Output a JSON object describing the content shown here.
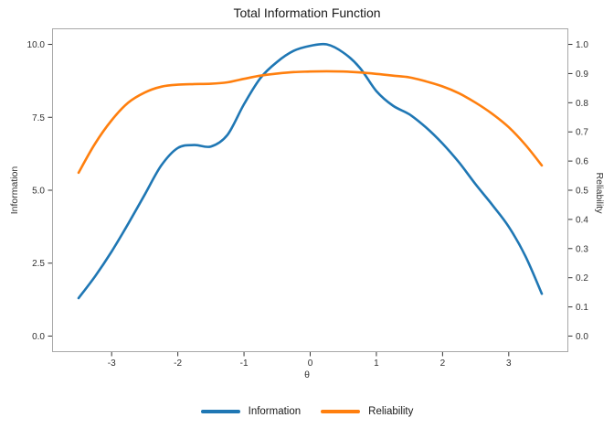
{
  "title": "Total Information Function",
  "chart_data": {
    "type": "line",
    "title": "Total Information Function",
    "xlabel": "θ",
    "ylabel_left": "Information",
    "ylabel_right": "Reliability",
    "xlim": [
      -3.9,
      3.9
    ],
    "ylim_left": [
      -0.55,
      10.55
    ],
    "ylim_right": [
      -0.055,
      1.055
    ],
    "xticks": [
      -3,
      -2,
      -1,
      0,
      1,
      2,
      3
    ],
    "yticks_left": [
      "0.0",
      "2.5",
      "5.0",
      "7.5",
      "10.0"
    ],
    "yticks_right": [
      "0.0",
      "0.1",
      "0.2",
      "0.3",
      "0.4",
      "0.5",
      "0.6",
      "0.7",
      "0.8",
      "0.9",
      "1.0"
    ],
    "grid": false,
    "legend_position": "bottom",
    "x": [
      -3.5,
      -3.25,
      -3.0,
      -2.75,
      -2.5,
      -2.25,
      -2.0,
      -1.75,
      -1.5,
      -1.25,
      -1.0,
      -0.75,
      -0.5,
      -0.25,
      0.0,
      0.25,
      0.5,
      0.75,
      1.0,
      1.25,
      1.5,
      1.75,
      2.0,
      2.25,
      2.5,
      2.75,
      3.0,
      3.25,
      3.5
    ],
    "series": [
      {
        "name": "Information",
        "axis": "left",
        "color": "#1f77b4",
        "values": [
          1.3,
          2.05,
          2.9,
          3.85,
          4.85,
          5.85,
          6.45,
          6.55,
          6.5,
          6.9,
          7.95,
          8.85,
          9.4,
          9.78,
          9.95,
          10.0,
          9.72,
          9.2,
          8.4,
          7.9,
          7.6,
          7.15,
          6.6,
          5.95,
          5.2,
          4.5,
          3.75,
          2.75,
          1.45
        ]
      },
      {
        "name": "Reliability",
        "axis": "right",
        "color": "#ff7f0e",
        "values": [
          0.56,
          0.66,
          0.74,
          0.8,
          0.835,
          0.855,
          0.862,
          0.864,
          0.865,
          0.87,
          0.882,
          0.893,
          0.9,
          0.905,
          0.907,
          0.908,
          0.907,
          0.904,
          0.899,
          0.893,
          0.887,
          0.873,
          0.856,
          0.832,
          0.8,
          0.762,
          0.716,
          0.656,
          0.585
        ]
      }
    ]
  },
  "legend": {
    "items": [
      {
        "label": "Information",
        "color": "#1f77b4"
      },
      {
        "label": "Reliability",
        "color": "#ff7f0e"
      }
    ]
  }
}
